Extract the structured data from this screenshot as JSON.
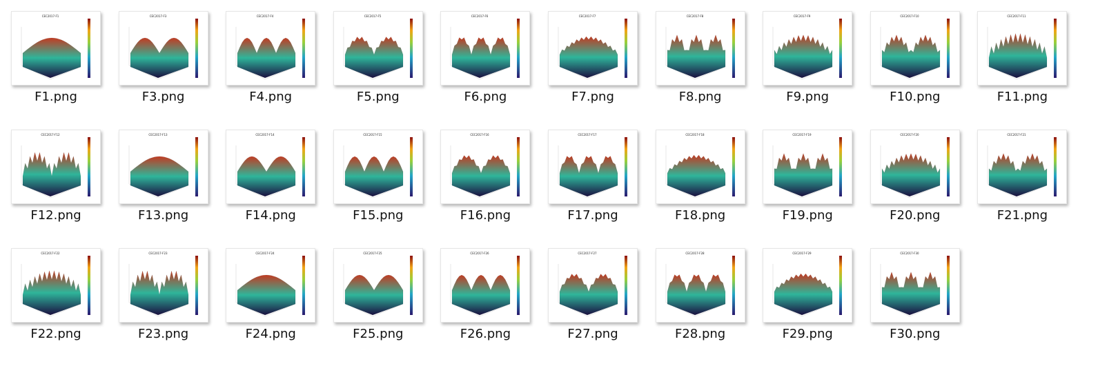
{
  "files": [
    {
      "name": "F1.png",
      "icon": "image-file-icon",
      "title": "CEC2017-F1"
    },
    {
      "name": "F3.png",
      "icon": "image-file-icon",
      "title": "CEC2017-F3"
    },
    {
      "name": "F4.png",
      "icon": "image-file-icon",
      "title": "CEC2017-F4"
    },
    {
      "name": "F5.png",
      "icon": "image-file-icon",
      "title": "CEC2017-F5"
    },
    {
      "name": "F6.png",
      "icon": "image-file-icon",
      "title": "CEC2017-F6"
    },
    {
      "name": "F7.png",
      "icon": "image-file-icon",
      "title": "CEC2017-F7"
    },
    {
      "name": "F8.png",
      "icon": "image-file-icon",
      "title": "CEC2017-F8"
    },
    {
      "name": "F9.png",
      "icon": "image-file-icon",
      "title": "CEC2017-F9"
    },
    {
      "name": "F10.png",
      "icon": "image-file-icon",
      "title": "CEC2017-F10"
    },
    {
      "name": "F11.png",
      "icon": "image-file-icon",
      "title": "CEC2017-F11"
    },
    {
      "name": "F12.png",
      "icon": "image-file-icon",
      "title": "CEC2017-F12"
    },
    {
      "name": "F13.png",
      "icon": "image-file-icon",
      "title": "CEC2017-F13"
    },
    {
      "name": "F14.png",
      "icon": "image-file-icon",
      "title": "CEC2017-F14"
    },
    {
      "name": "F15.png",
      "icon": "image-file-icon",
      "title": "CEC2017-F15"
    },
    {
      "name": "F16.png",
      "icon": "image-file-icon",
      "title": "CEC2017-F16"
    },
    {
      "name": "F17.png",
      "icon": "image-file-icon",
      "title": "CEC2017-F17"
    },
    {
      "name": "F18.png",
      "icon": "image-file-icon",
      "title": "CEC2017-F18"
    },
    {
      "name": "F19.png",
      "icon": "image-file-icon",
      "title": "CEC2017-F19"
    },
    {
      "name": "F20.png",
      "icon": "image-file-icon",
      "title": "CEC2017-F20"
    },
    {
      "name": "F21.png",
      "icon": "image-file-icon",
      "title": "CEC2017-F21"
    },
    {
      "name": "F22.png",
      "icon": "image-file-icon",
      "title": "CEC2017-F22"
    },
    {
      "name": "F23.png",
      "icon": "image-file-icon",
      "title": "CEC2017-F23"
    },
    {
      "name": "F24.png",
      "icon": "image-file-icon",
      "title": "CEC2017-F24"
    },
    {
      "name": "F25.png",
      "icon": "image-file-icon",
      "title": "CEC2017-F25"
    },
    {
      "name": "F26.png",
      "icon": "image-file-icon",
      "title": "CEC2017-F26"
    },
    {
      "name": "F27.png",
      "icon": "image-file-icon",
      "title": "CEC2017-F27"
    },
    {
      "name": "F28.png",
      "icon": "image-file-icon",
      "title": "CEC2017-F28"
    },
    {
      "name": "F29.png",
      "icon": "image-file-icon",
      "title": "CEC2017-F29"
    },
    {
      "name": "F30.png",
      "icon": "image-file-icon",
      "title": "CEC2017-F30"
    }
  ],
  "colors": {
    "surface_low": "#1a1040",
    "surface_mid": "#2fb59a",
    "surface_high": "#c23b22",
    "background": "#ffffff",
    "label": "#111111"
  }
}
